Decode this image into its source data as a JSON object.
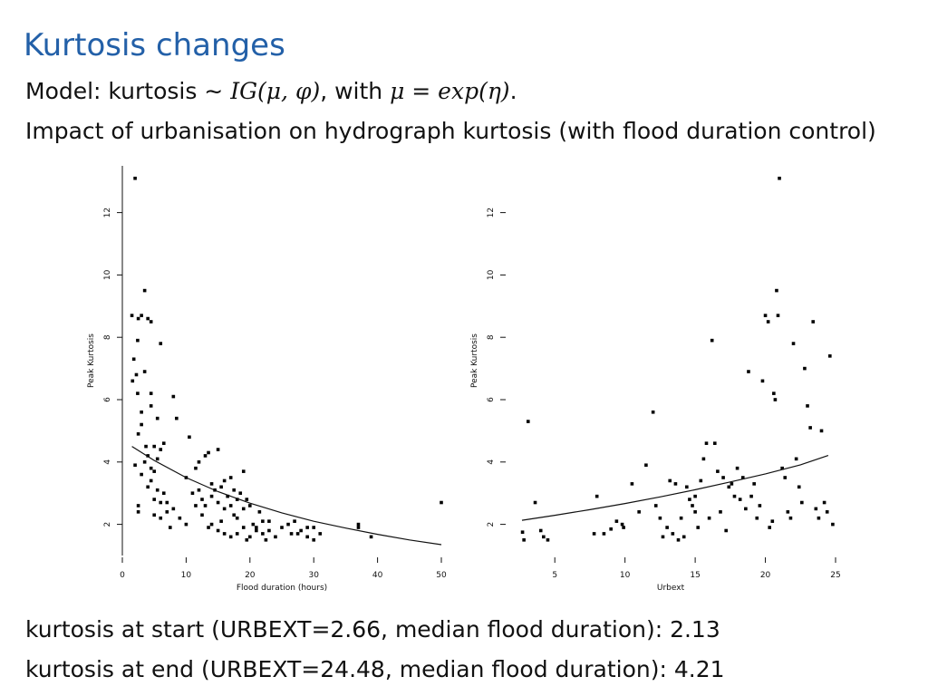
{
  "slide": {
    "title": "Kurtosis changes",
    "model_prefix": "Model: kurtosis ∼ ",
    "model_formula": "IG(μ, φ)",
    "model_mid": ", with ",
    "model_link": "μ = exp(η)",
    "model_end": ".",
    "subtitle": "Impact of urbanisation on hydrograph kurtosis (with flood duration control)",
    "footer_start": "kurtosis at start (URBEXT=2.66, median flood duration): 2.13",
    "footer_end": "kurtosis at end (URBEXT=24.48, median flood duration): 4.21"
  },
  "chart_data": [
    {
      "type": "scatter",
      "xlabel": "Flood duration (hours)",
      "ylabel": "Peak Kurtosis",
      "xlim": [
        0,
        50
      ],
      "ylim": [
        1,
        13.5
      ],
      "xticks": [
        0,
        10,
        20,
        30,
        40,
        50
      ],
      "yticks": [
        2,
        4,
        6,
        8,
        10,
        12
      ],
      "points": [
        [
          2,
          13.1
        ],
        [
          1.5,
          8.7
        ],
        [
          2.5,
          8.6
        ],
        [
          3,
          8.7
        ],
        [
          4,
          8.6
        ],
        [
          4.5,
          8.5
        ],
        [
          3.5,
          9.5
        ],
        [
          1.8,
          7.3
        ],
        [
          2.2,
          6.8
        ],
        [
          3.5,
          6.9
        ],
        [
          6,
          7.8
        ],
        [
          2.4,
          7.9
        ],
        [
          1.6,
          6.6
        ],
        [
          2.4,
          6.2
        ],
        [
          4.5,
          6.2
        ],
        [
          8,
          6.1
        ],
        [
          4.5,
          5.8
        ],
        [
          5.5,
          5.4
        ],
        [
          8.5,
          5.4
        ],
        [
          3,
          5.6
        ],
        [
          3,
          5.2
        ],
        [
          2.5,
          4.9
        ],
        [
          3.7,
          4.5
        ],
        [
          5,
          4.5
        ],
        [
          6,
          4.4
        ],
        [
          6.5,
          4.6
        ],
        [
          10.5,
          4.8
        ],
        [
          4,
          4.2
        ],
        [
          5.5,
          4.1
        ],
        [
          12,
          4
        ],
        [
          13,
          4.2
        ],
        [
          13.5,
          4.3
        ],
        [
          15,
          4.4
        ],
        [
          3.5,
          4
        ],
        [
          4.5,
          3.8
        ],
        [
          5,
          3.7
        ],
        [
          3,
          3.6
        ],
        [
          2,
          3.9
        ],
        [
          11.5,
          3.8
        ],
        [
          17,
          3.5
        ],
        [
          16,
          3.4
        ],
        [
          19,
          3.7
        ],
        [
          10,
          3.5
        ],
        [
          14,
          3.3
        ],
        [
          15.5,
          3.2
        ],
        [
          17.5,
          3.1
        ],
        [
          18.5,
          3
        ],
        [
          12,
          3.1
        ],
        [
          14.5,
          3.1
        ],
        [
          4.5,
          3.4
        ],
        [
          4,
          3.2
        ],
        [
          5.5,
          3.1
        ],
        [
          6.5,
          3
        ],
        [
          11,
          3
        ],
        [
          12.5,
          2.8
        ],
        [
          14,
          2.9
        ],
        [
          16.5,
          2.9
        ],
        [
          18,
          2.8
        ],
        [
          19.5,
          2.8
        ],
        [
          5,
          2.8
        ],
        [
          6,
          2.7
        ],
        [
          13,
          2.6
        ],
        [
          15,
          2.7
        ],
        [
          17,
          2.6
        ],
        [
          19,
          2.5
        ],
        [
          20,
          2.6
        ],
        [
          7,
          2.7
        ],
        [
          8,
          2.5
        ],
        [
          11.5,
          2.6
        ],
        [
          16,
          2.5
        ],
        [
          2.5,
          2.6
        ],
        [
          2.5,
          2.4
        ],
        [
          5,
          2.3
        ],
        [
          6,
          2.2
        ],
        [
          7,
          2.4
        ],
        [
          12.5,
          2.3
        ],
        [
          17.5,
          2.3
        ],
        [
          21.5,
          2.4
        ],
        [
          9,
          2.2
        ],
        [
          14,
          2
        ],
        [
          15.5,
          2.1
        ],
        [
          18,
          2.2
        ],
        [
          20.5,
          2
        ],
        [
          21,
          1.9
        ],
        [
          22,
          2.1
        ],
        [
          23,
          2.1
        ],
        [
          26,
          2
        ],
        [
          27,
          2.1
        ],
        [
          7.5,
          1.9
        ],
        [
          10,
          2
        ],
        [
          13.5,
          1.9
        ],
        [
          19,
          1.9
        ],
        [
          21,
          1.8
        ],
        [
          23,
          1.8
        ],
        [
          25,
          1.9
        ],
        [
          28,
          1.8
        ],
        [
          29,
          1.9
        ],
        [
          30,
          1.9
        ],
        [
          16,
          1.7
        ],
        [
          18,
          1.7
        ],
        [
          20,
          1.6
        ],
        [
          22,
          1.7
        ],
        [
          24,
          1.6
        ],
        [
          27.5,
          1.7
        ],
        [
          31,
          1.7
        ],
        [
          15,
          1.8
        ],
        [
          17,
          1.6
        ],
        [
          19.5,
          1.5
        ],
        [
          22.5,
          1.5
        ],
        [
          26.5,
          1.7
        ],
        [
          29,
          1.6
        ],
        [
          30,
          1.5
        ],
        [
          37,
          2
        ],
        [
          37,
          1.9
        ],
        [
          39,
          1.6
        ],
        [
          50,
          2.7
        ]
      ],
      "curve": [
        [
          1.5,
          4.5
        ],
        [
          5,
          4.05
        ],
        [
          10,
          3.5
        ],
        [
          15,
          3.05
        ],
        [
          20,
          2.68
        ],
        [
          25,
          2.37
        ],
        [
          30,
          2.1
        ],
        [
          35,
          1.88
        ],
        [
          40,
          1.68
        ],
        [
          45,
          1.5
        ],
        [
          50,
          1.35
        ]
      ]
    },
    {
      "type": "scatter",
      "xlabel": "Urbext",
      "ylabel": "Peak Kurtosis",
      "xlim": [
        1.5,
        25
      ],
      "ylim": [
        1,
        13.5
      ],
      "xticks": [
        5,
        10,
        15,
        20,
        25
      ],
      "yticks": [
        2,
        4,
        6,
        8,
        10,
        12
      ],
      "points": [
        [
          2.7,
          1.75
        ],
        [
          2.8,
          1.5
        ],
        [
          3.1,
          5.3
        ],
        [
          3.6,
          2.7
        ],
        [
          4,
          1.8
        ],
        [
          4.2,
          1.6
        ],
        [
          4.5,
          1.5
        ],
        [
          7.8,
          1.7
        ],
        [
          8,
          2.9
        ],
        [
          8.5,
          1.7
        ],
        [
          9,
          1.85
        ],
        [
          9.4,
          2.1
        ],
        [
          9.8,
          2.0
        ],
        [
          9.9,
          1.9
        ],
        [
          10.5,
          3.3
        ],
        [
          11,
          2.4
        ],
        [
          11.5,
          3.9
        ],
        [
          12,
          5.6
        ],
        [
          12.2,
          2.6
        ],
        [
          12.5,
          2.2
        ],
        [
          12.7,
          1.6
        ],
        [
          13,
          1.9
        ],
        [
          13.2,
          3.4
        ],
        [
          13.4,
          1.7
        ],
        [
          13.6,
          3.3
        ],
        [
          13.8,
          1.5
        ],
        [
          14,
          2.2
        ],
        [
          14.2,
          1.6
        ],
        [
          14.4,
          3.2
        ],
        [
          14.6,
          2.8
        ],
        [
          14.8,
          2.6
        ],
        [
          15,
          2.9
        ],
        [
          15,
          2.4
        ],
        [
          15.2,
          1.9
        ],
        [
          15.4,
          3.4
        ],
        [
          15.6,
          4.1
        ],
        [
          15.8,
          4.6
        ],
        [
          16,
          2.2
        ],
        [
          16.2,
          7.9
        ],
        [
          16.4,
          4.6
        ],
        [
          16.6,
          3.7
        ],
        [
          16.8,
          2.4
        ],
        [
          17,
          3.5
        ],
        [
          17.2,
          1.8
        ],
        [
          17.4,
          3.2
        ],
        [
          17.6,
          3.3
        ],
        [
          17.8,
          2.9
        ],
        [
          18,
          3.8
        ],
        [
          18.2,
          2.8
        ],
        [
          18.4,
          3.5
        ],
        [
          18.6,
          2.5
        ],
        [
          18.8,
          6.9
        ],
        [
          19,
          2.9
        ],
        [
          19.2,
          3.3
        ],
        [
          19.4,
          2.2
        ],
        [
          19.6,
          2.6
        ],
        [
          19.8,
          6.6
        ],
        [
          20,
          8.7
        ],
        [
          20.2,
          8.5
        ],
        [
          20.3,
          1.9
        ],
        [
          20.5,
          2.1
        ],
        [
          20.6,
          6.2
        ],
        [
          20.7,
          6
        ],
        [
          20.8,
          9.5
        ],
        [
          20.9,
          8.7
        ],
        [
          21,
          13.1
        ],
        [
          21.2,
          3.8
        ],
        [
          21.4,
          3.5
        ],
        [
          21.6,
          2.4
        ],
        [
          21.8,
          2.2
        ],
        [
          22,
          7.8
        ],
        [
          22.2,
          4.1
        ],
        [
          22.4,
          3.2
        ],
        [
          22.6,
          2.7
        ],
        [
          22.8,
          7
        ],
        [
          23,
          5.8
        ],
        [
          23.2,
          5.1
        ],
        [
          23.4,
          8.5
        ],
        [
          23.6,
          2.5
        ],
        [
          23.8,
          2.2
        ],
        [
          24,
          5
        ],
        [
          24.2,
          2.7
        ],
        [
          24.4,
          2.4
        ],
        [
          24.6,
          7.4
        ],
        [
          24.8,
          2
        ]
      ],
      "curve": [
        [
          2.66,
          2.13
        ],
        [
          5,
          2.29
        ],
        [
          7.5,
          2.47
        ],
        [
          10,
          2.67
        ],
        [
          12.5,
          2.88
        ],
        [
          15,
          3.11
        ],
        [
          17.5,
          3.36
        ],
        [
          20,
          3.62
        ],
        [
          22.5,
          3.91
        ],
        [
          24.48,
          4.21
        ]
      ]
    }
  ]
}
